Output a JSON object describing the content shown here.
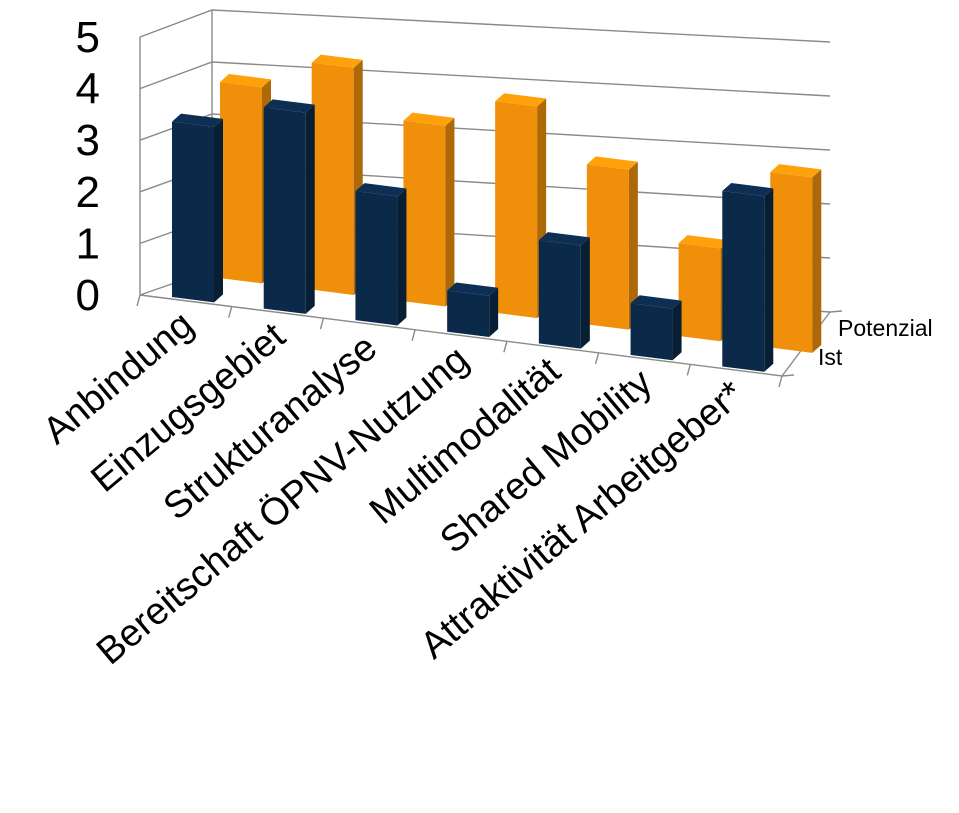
{
  "chart_data": {
    "type": "bar",
    "variant": "3d-column",
    "title": "",
    "xlabel": "",
    "ylabel": "",
    "ylim": [
      0,
      5
    ],
    "yticks": [
      "0",
      "1",
      "2",
      "3",
      "4",
      "5"
    ],
    "grid": true,
    "categories": [
      "Anbindung",
      "Einzugsgebiet",
      "Strukturanalyse",
      "Bereitschaft ÖPNV-Nutzung",
      "Multimodalität",
      "Shared Mobility",
      "Attraktivität Arbeitgeber*"
    ],
    "series": [
      {
        "name": "Ist",
        "color": "#0b2a4a",
        "values": [
          3.4,
          3.9,
          2.5,
          0.8,
          2.0,
          1.0,
          3.4
        ]
      },
      {
        "name": "Potenzial",
        "color": "#f0900a",
        "values": [
          3.8,
          4.4,
          3.5,
          4.1,
          3.1,
          1.8,
          3.4
        ]
      }
    ]
  }
}
